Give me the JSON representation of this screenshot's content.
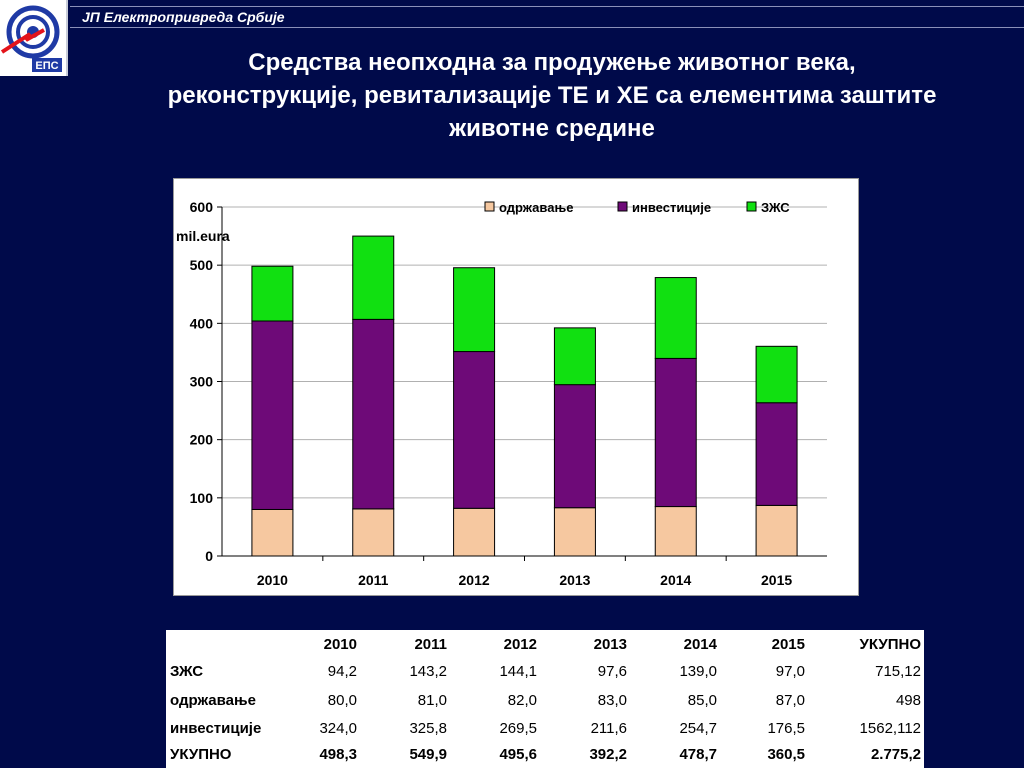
{
  "header": {
    "company": "ЈП Електропривреда Србије"
  },
  "logo": {
    "text": "ЕПС",
    "icon": "eps-logo-icon",
    "colors": {
      "red": "#e3141b",
      "blue": "#1f3aa5"
    }
  },
  "title": {
    "lines": [
      "Средства неопходна за продужење животног века,",
      "реконструкције, ревитализације ТЕ и ХЕ са елементима заштите",
      "животне средине"
    ]
  },
  "chart_data": {
    "type": "bar",
    "stacked": true,
    "categories": [
      "2010",
      "2011",
      "2012",
      "2013",
      "2014",
      "2015"
    ],
    "series": [
      {
        "name": "одржавање",
        "values": [
          80.0,
          81.0,
          82.0,
          83.0,
          85.0,
          87.0
        ],
        "color": "#f6c8a0"
      },
      {
        "name": "инвестиције",
        "values": [
          324.0,
          325.8,
          269.5,
          211.6,
          254.7,
          176.5
        ],
        "color": "#6e0a78"
      },
      {
        "name": "ЗЖС",
        "values": [
          94.2,
          143.2,
          144.1,
          97.6,
          139.0,
          97.0
        ],
        "color": "#11e011"
      }
    ],
    "ylabel": "mil.eura",
    "ylim": [
      0,
      600
    ],
    "yticks": [
      "0",
      "100",
      "200",
      "300",
      "400",
      "500",
      "600"
    ],
    "grid": true,
    "legend": "top-right"
  },
  "table": {
    "headers": [
      "",
      "2010",
      "2011",
      "2012",
      "2013",
      "2014",
      "2015",
      "УКУПНО"
    ],
    "rows": [
      {
        "label": "ЗЖС",
        "cells": [
          "94,2",
          "143,2",
          "144,1",
          "97,6",
          "139,0",
          "97,0",
          "715,12"
        ]
      },
      {
        "label": "одржавање",
        "cells": [
          "80,0",
          "81,0",
          "82,0",
          "83,0",
          "85,0",
          "87,0",
          "498"
        ]
      },
      {
        "label": "инвестиције",
        "cells": [
          "324,0",
          "325,8",
          "269,5",
          "211,6",
          "254,7",
          "176,5",
          "1562,112"
        ]
      },
      {
        "label": "УКУПНО",
        "cells": [
          "498,3",
          "549,9",
          "495,6",
          "392,2",
          "478,7",
          "360,5",
          "2.775,2"
        ]
      }
    ]
  }
}
